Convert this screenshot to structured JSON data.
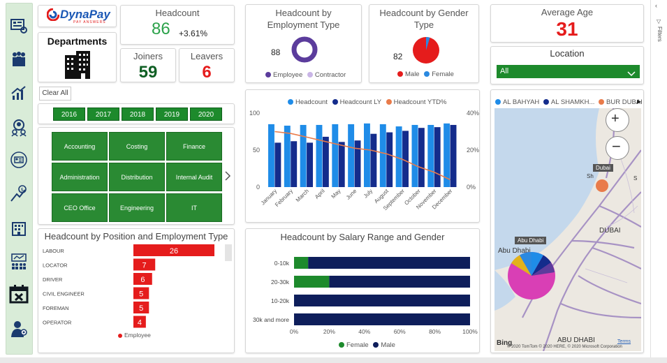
{
  "brand": {
    "name": "DynaPay",
    "tagline": "PAY ANSWERS"
  },
  "departments_card": {
    "title": "Departments"
  },
  "headcount": {
    "title": "Headcount",
    "value": "86",
    "change": "+3.61%"
  },
  "joiners": {
    "title": "Joiners",
    "value": "59"
  },
  "leavers": {
    "title": "Leavers",
    "value": "6"
  },
  "clear_all": "Clear All",
  "years": [
    "2016",
    "2017",
    "2018",
    "2019",
    "2020"
  ],
  "departments": [
    "Accounting",
    "Costing",
    "Finance",
    "Administration",
    "Distribution",
    "Internal Audit",
    "CEO Office",
    "Engineering",
    "IT"
  ],
  "emp_type": {
    "title": "Headcount by Employment Type",
    "value": "88",
    "legend": [
      {
        "label": "Employee",
        "color": "#5b3c9c"
      },
      {
        "label": "Contractor",
        "color": "#c9b5e6"
      }
    ]
  },
  "gender": {
    "title": "Headcount by Gender Type",
    "value": "82",
    "legend": [
      {
        "label": "Male",
        "color": "#e51c1c"
      },
      {
        "label": "Female",
        "color": "#2b89e0"
      }
    ]
  },
  "avg_age": {
    "title": "Average Age",
    "value": "31"
  },
  "location": {
    "title": "Location",
    "selected": "All"
  },
  "monthly": {
    "legend": [
      {
        "label": "Headcount",
        "color": "#1f8ce8"
      },
      {
        "label": "Headcount LY",
        "color": "#142c8c"
      },
      {
        "label": "Headcount YTD%",
        "color": "#e97b4a"
      }
    ],
    "y_left_ticks": [
      "100",
      "50",
      "0"
    ],
    "y_right_ticks": [
      "40%",
      "20%",
      "0%"
    ]
  },
  "chart_data": [
    {
      "type": "bar",
      "title": "Headcount by Month",
      "categories": [
        "January",
        "February",
        "March",
        "April",
        "May",
        "June",
        "July",
        "August",
        "September",
        "October",
        "November",
        "December"
      ],
      "series": [
        {
          "name": "Headcount",
          "values": [
            85,
            83,
            84,
            84,
            85,
            85,
            86,
            85,
            82,
            84,
            84,
            86
          ]
        },
        {
          "name": "Headcount LY",
          "values": [
            60,
            62,
            60,
            68,
            61,
            63,
            72,
            74,
            76,
            80,
            81,
            84
          ]
        },
        {
          "name": "Headcount YTD%",
          "values": [
            30,
            29,
            27,
            25,
            23,
            21,
            20,
            18,
            15,
            11,
            8,
            4
          ]
        }
      ],
      "ylim": [
        0,
        100
      ],
      "y2lim": [
        0,
        40
      ]
    },
    {
      "type": "bar",
      "title": "Headcount by Position and Employment Type",
      "categories": [
        "LABOUR",
        "LOCATOR",
        "DRIVER",
        "CIVIL ENGINEER",
        "FOREMAN",
        "OPERATOR"
      ],
      "series": [
        {
          "name": "Employee",
          "values": [
            26,
            7,
            6,
            5,
            5,
            4
          ]
        }
      ],
      "xlim": [
        0,
        26
      ]
    },
    {
      "type": "bar",
      "title": "Headcount by Salary Range and Gender",
      "categories": [
        "0-10k",
        "20-30k",
        "10-20k",
        "30k and more"
      ],
      "series": [
        {
          "name": "Female",
          "values": [
            8,
            20,
            0,
            0
          ]
        },
        {
          "name": "Male",
          "values": [
            92,
            80,
            100,
            100
          ]
        }
      ],
      "xlim": [
        0,
        100
      ],
      "x_ticks": [
        "0%",
        "20%",
        "40%",
        "60%",
        "80%",
        "100%"
      ]
    }
  ],
  "position": {
    "title": "Headcount by Position and Employment Type",
    "legend": "Employee"
  },
  "salary": {
    "title": "Headcount by Salary Range and Gender",
    "legend": [
      {
        "label": "Female",
        "color": "#1d8a2c"
      },
      {
        "label": "Male",
        "color": "#0e1e5b"
      }
    ]
  },
  "map": {
    "legend": [
      {
        "label": "AL BAHYAH",
        "color": "#1f8ce8"
      },
      {
        "label": "AL SHAMKH...",
        "color": "#142c8c"
      },
      {
        "label": "BUR DUBAI",
        "color": "#e97b4a"
      }
    ],
    "labels": {
      "dubai_tag": "Dubai",
      "abudhabi_tag": "Abu Dhabi",
      "sharjah": "Sh",
      "dubai_city": "DUBAI",
      "abudhabi_city": "ABU DHABI",
      "abu_dh": "Abu Dhabi",
      "s_label": "S"
    },
    "bing": "Bing",
    "copyright": "© 2020 TomTom © 2020 HERE, © 2020 Microsoft Corporation",
    "terms": "Terms"
  },
  "filters_label": "Filters"
}
